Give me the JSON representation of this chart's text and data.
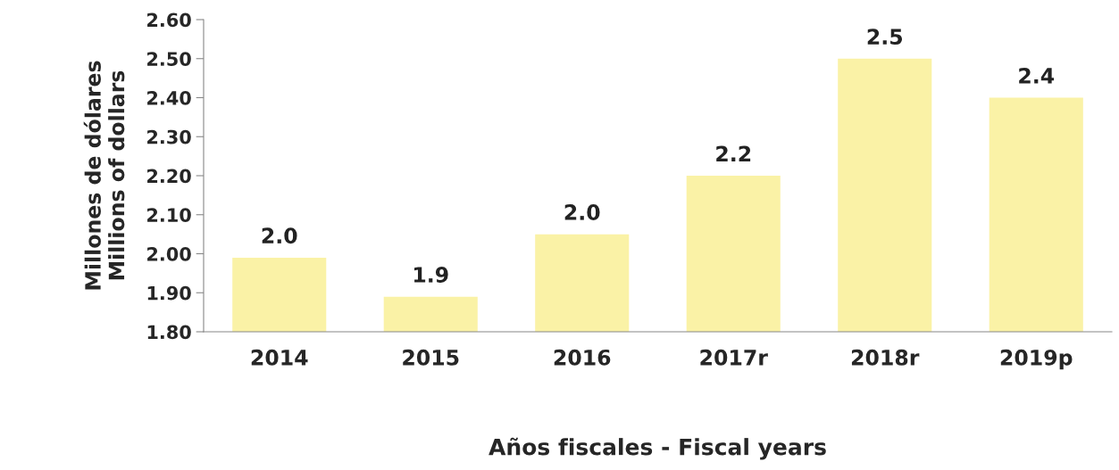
{
  "chart_data": {
    "type": "bar",
    "xlabel": "Años fiscales - Fiscal years",
    "ylabel": "Millones de dólares\nMillions of dollars",
    "categories": [
      "2014",
      "2015",
      "2016",
      "2017r",
      "2018r",
      "2019p"
    ],
    "values": [
      1.99,
      1.89,
      2.05,
      2.2,
      2.5,
      2.4
    ],
    "value_labels": [
      "2.0",
      "1.9",
      "2.0",
      "2.2",
      "2.5",
      "2.4"
    ],
    "color": "#faf2a6",
    "ylim": [
      1.8,
      2.6
    ],
    "yticks": [
      {
        "value": 1.8,
        "label": "1.80"
      },
      {
        "value": 1.9,
        "label": "1.90"
      },
      {
        "value": 2.0,
        "label": "2.00"
      },
      {
        "value": 2.1,
        "label": "2.10"
      },
      {
        "value": 2.2,
        "label": "2.20"
      },
      {
        "value": 2.3,
        "label": "2.30"
      },
      {
        "value": 2.4,
        "label": "2.40"
      },
      {
        "value": 2.5,
        "label": "2.50"
      },
      {
        "value": 2.6,
        "label": "2.60"
      }
    ],
    "grid": false,
    "legend": false
  }
}
